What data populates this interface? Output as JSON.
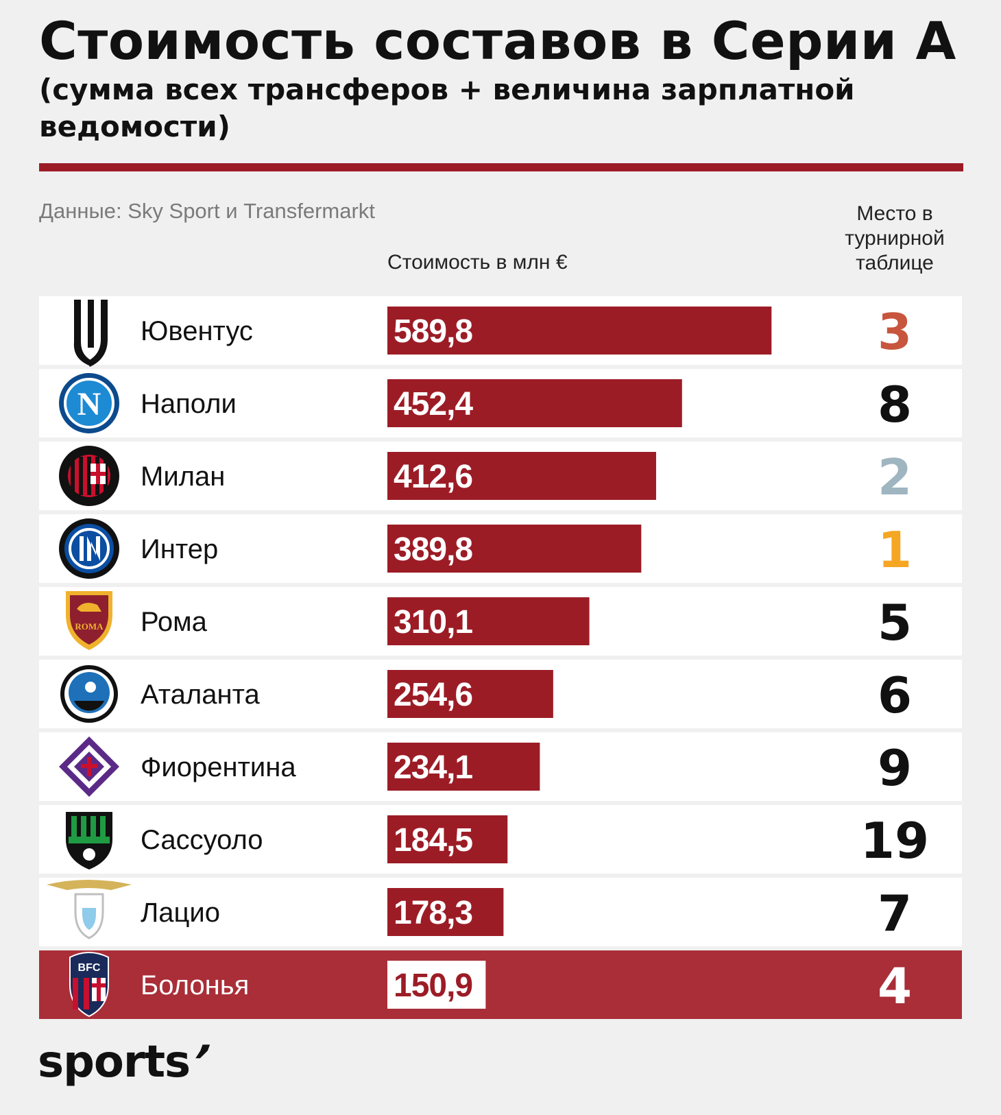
{
  "header": {
    "title": "Стоимость составов в Серии А",
    "subtitle": "(сумма всех трансферов + величина зарплатной ведомости)",
    "source": "Данные: Sky Sport и Transfermarkt",
    "value_col_label": "Стоимость в млн €",
    "place_col_label": "Место в турнирной таблице"
  },
  "brand": {
    "logo_text": "sports",
    "logo_mark": "’"
  },
  "colors": {
    "bar": "#9c1c26",
    "highlight_row": "#a92e38",
    "place_gold": "#f5a623",
    "place_silver": "#9fb6c1",
    "place_bronze": "#c8553d"
  },
  "chart_data": {
    "type": "bar",
    "orientation": "horizontal",
    "title": "Стоимость составов в Серии А",
    "subtitle": "(сумма всех трансферов + величина зарплатной ведомости)",
    "value_label": "Стоимость в млн €",
    "xlim": [
      0,
      600
    ],
    "grid": false,
    "categories": [
      "Ювентус",
      "Наполи",
      "Милан",
      "Интер",
      "Рома",
      "Аталанта",
      "Фиорентина",
      "Сассуоло",
      "Лацио",
      "Болонья"
    ],
    "values": [
      589.8,
      452.4,
      412.6,
      389.8,
      310.1,
      254.6,
      234.1,
      184.5,
      178.3,
      150.9
    ],
    "value_labels": [
      "589,8",
      "452,4",
      "412,6",
      "389,8",
      "310,1",
      "254,6",
      "234,1",
      "184,5",
      "178,3",
      "150,9"
    ],
    "places": [
      "3",
      "8",
      "2",
      "1",
      "5",
      "6",
      "9",
      "19",
      "7",
      "4"
    ],
    "highlight": "Болонья",
    "logos": [
      "juventus-logo",
      "napoli-logo",
      "milan-logo",
      "inter-logo",
      "roma-logo",
      "atalanta-logo",
      "fiorentina-logo",
      "sassuolo-logo",
      "lazio-logo",
      "bologna-logo"
    ]
  }
}
